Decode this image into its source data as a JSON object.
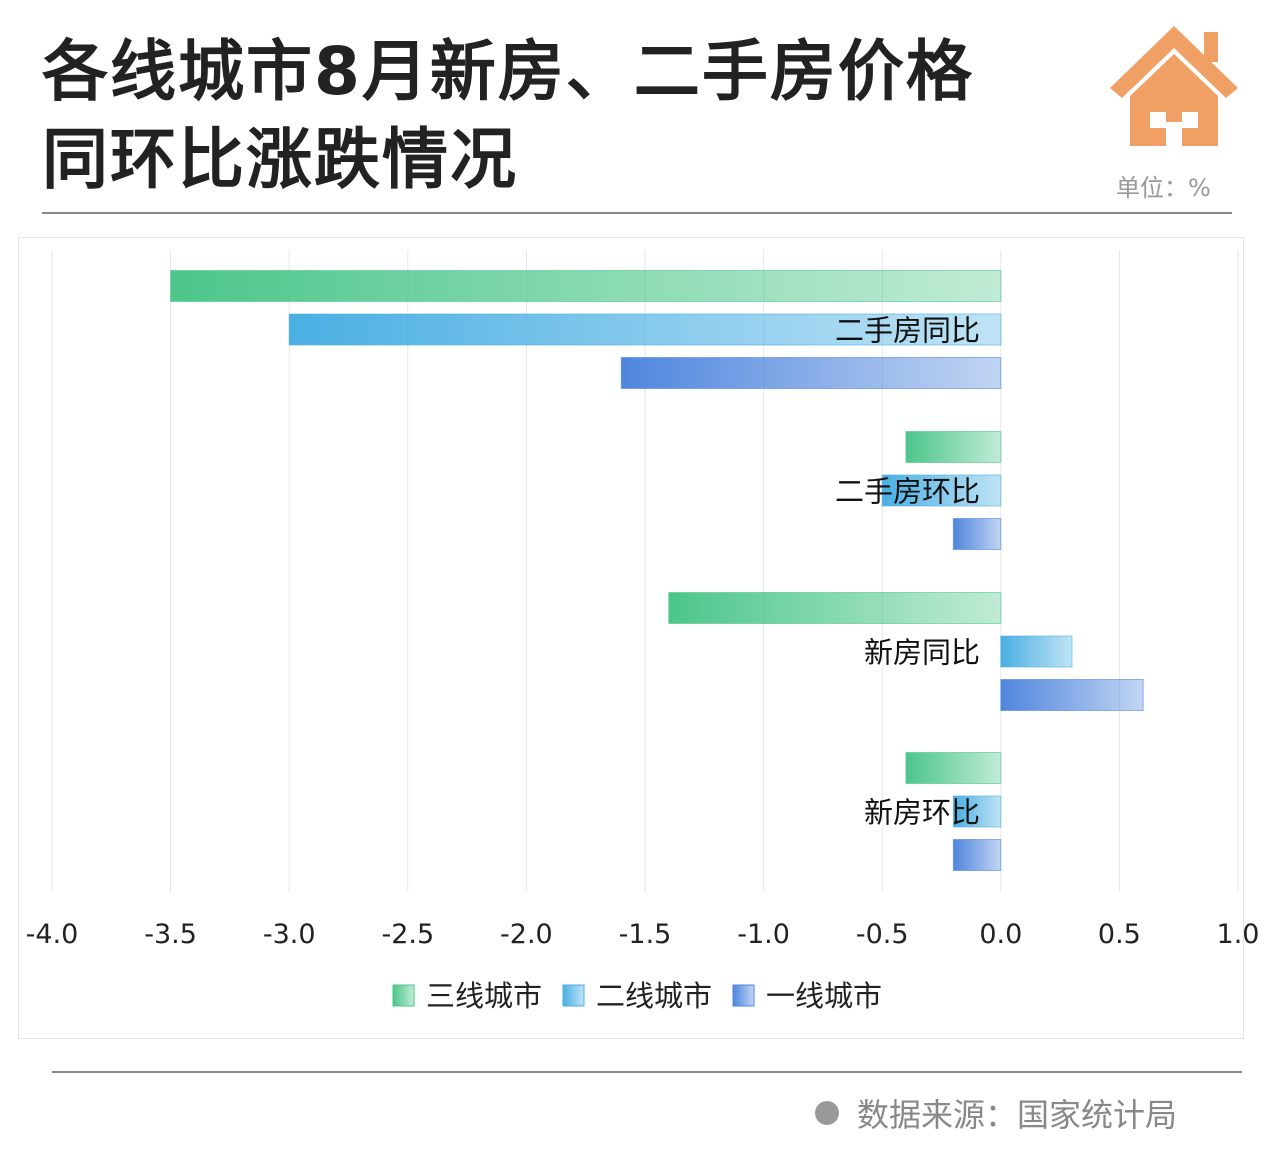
{
  "header": {
    "title_line1": "各线城市8月新房、二手房价格",
    "title_line2": "同环比涨跌情况",
    "unit": "单位：%",
    "icon": "house-icon",
    "icon_color": "#F0A064"
  },
  "source": "数据来源：国家统计局",
  "chart_data": {
    "type": "bar",
    "orientation": "horizontal",
    "categories": [
      "二手房同比",
      "二手房环比",
      "新房同比",
      "新房环比"
    ],
    "series": [
      {
        "name": "三线城市",
        "color": "#4CC68A",
        "values": [
          -3.5,
          -0.4,
          -1.4,
          -0.4
        ]
      },
      {
        "name": "二线城市",
        "color": "#4AAFE3",
        "values": [
          -3.0,
          -0.5,
          0.3,
          -0.2
        ]
      },
      {
        "name": "一线城市",
        "color": "#4F86DD",
        "values": [
          -1.6,
          -0.2,
          0.6,
          -0.2
        ]
      }
    ],
    "xlim": [
      -4.0,
      1.0
    ],
    "xticks": [
      "-4.0",
      "-3.5",
      "-3.0",
      "-2.5",
      "-2.0",
      "-1.5",
      "-1.0",
      "-0.5",
      "0.0",
      "0.5",
      "1.0"
    ],
    "grid": true,
    "legend": "bottom"
  }
}
